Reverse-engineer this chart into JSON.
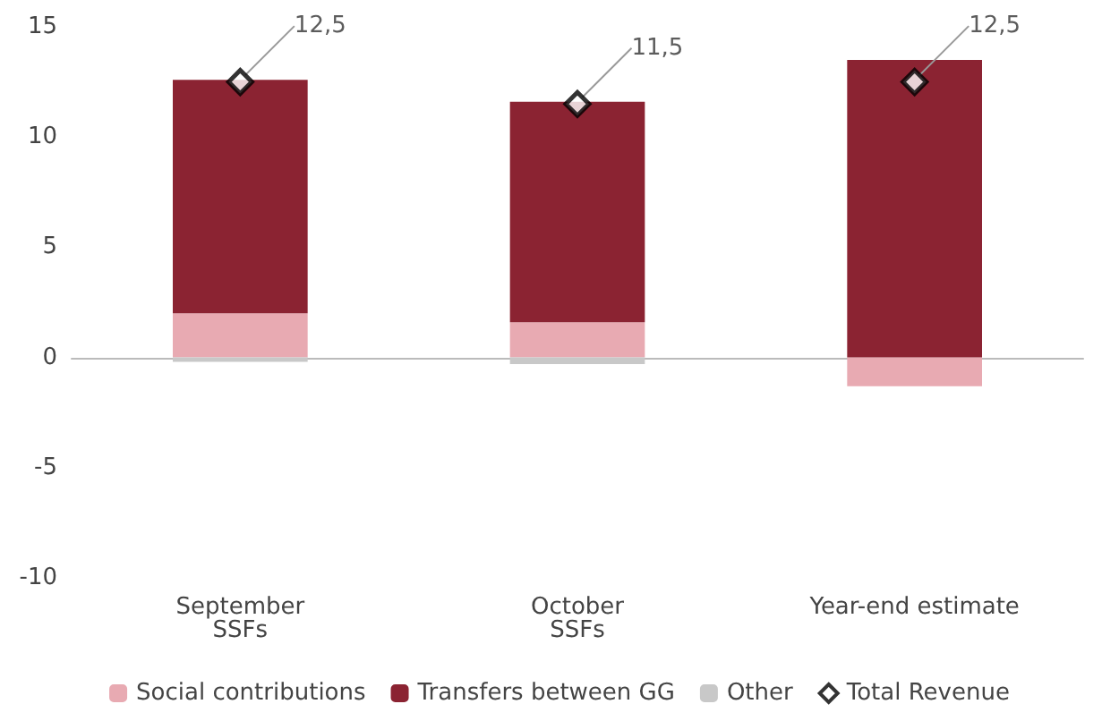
{
  "chart_data": {
    "type": "bar",
    "stacked": true,
    "categories": [
      "September\nSSFs",
      "October\nSSFs",
      "Year-end estimate"
    ],
    "series": [
      {
        "name": "Social contributions",
        "color": "#e8aab2",
        "values": [
          2.0,
          1.6,
          -1.3
        ]
      },
      {
        "name": "Transfers between GG",
        "color": "#8b2332",
        "values": [
          10.6,
          10.0,
          13.5
        ]
      },
      {
        "name": "Other",
        "color": "#c8c8c8",
        "values": [
          -0.2,
          -0.3,
          0
        ]
      },
      {
        "name": "Total Revenue",
        "type": "scatter",
        "marker": "diamond",
        "color": "#ffffff",
        "x": [
          "September\nSSFs",
          "October\nSSFs",
          "Year-end estimate"
        ],
        "values": [
          12.5,
          11.5,
          12.5
        ],
        "value_labels": [
          "12,5",
          "11,5",
          "12,5"
        ]
      }
    ],
    "ylim": [
      -10,
      15
    ],
    "yticks": [
      -10,
      -5,
      0,
      5,
      10,
      15
    ],
    "legend": "bottom"
  }
}
